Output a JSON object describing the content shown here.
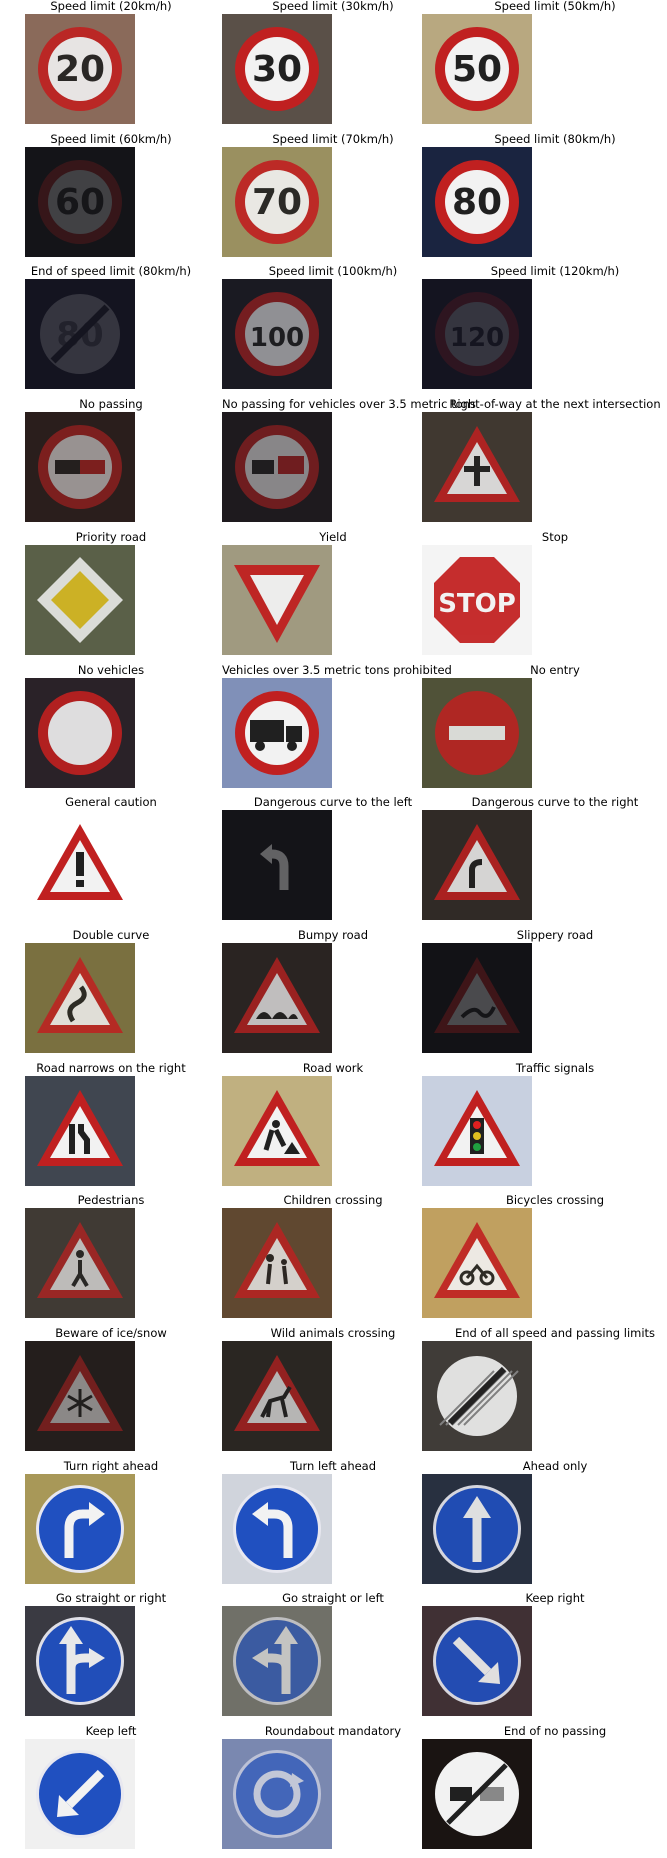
{
  "figure": {
    "signs": [
      {
        "label": "Speed limit (20km/h)",
        "kind": "speed",
        "text": "20",
        "bg": "#8a6a5a",
        "dim": 0.9
      },
      {
        "label": "Speed limit (30km/h)",
        "kind": "speed",
        "text": "30",
        "bg": "#5a5048",
        "dim": 1.0
      },
      {
        "label": "Speed limit (50km/h)",
        "kind": "speed",
        "text": "50",
        "bg": "#b8a880",
        "dim": 1.0
      },
      {
        "label": "Speed limit (60km/h)",
        "kind": "speed",
        "text": "60",
        "bg": "#141418",
        "dim": 0.2
      },
      {
        "label": "Speed limit (70km/h)",
        "kind": "speed",
        "text": "70",
        "bg": "#9a9060",
        "dim": 0.9
      },
      {
        "label": "Speed limit (80km/h)",
        "kind": "speed",
        "text": "80",
        "bg": "#1a2440",
        "dim": 1.0
      },
      {
        "label": "End of speed limit (80km/h)",
        "kind": "end",
        "text": "80",
        "bg": "#141420",
        "dim": 0.15
      },
      {
        "label": "Speed limit (100km/h)",
        "kind": "speed",
        "text": "100",
        "bg": "#1a1a22",
        "dim": 0.55
      },
      {
        "label": "Speed limit (120km/h)",
        "kind": "speed",
        "text": "120",
        "bg": "#141420",
        "dim": 0.15
      },
      {
        "label": "No passing",
        "kind": "nopass",
        "text": "",
        "bg": "#2a1e1c",
        "dim": 0.55
      },
      {
        "label": "No passing for vehicles over 3.5 metric tons",
        "kind": "nopasstruck",
        "text": "",
        "bg": "#1e1a1e",
        "dim": 0.5
      },
      {
        "label": "Right-of-way at the next intersection",
        "kind": "tri_cross",
        "text": "",
        "bg": "#403830",
        "dim": 0.85
      },
      {
        "label": "Priority road",
        "kind": "priority",
        "text": "",
        "bg": "#5a6048",
        "dim": 0.85
      },
      {
        "label": "Yield",
        "kind": "yield",
        "text": "",
        "bg": "#a09a80",
        "dim": 0.95
      },
      {
        "label": "Stop",
        "kind": "stop",
        "text": "STOP",
        "bg": "#f4f4f4",
        "dim": 0.9
      },
      {
        "label": "No vehicles",
        "kind": "novehicles",
        "text": "",
        "bg": "#2a2228",
        "dim": 0.9
      },
      {
        "label": "Vehicles over 3.5 metric tons prohibited",
        "kind": "truck",
        "text": "",
        "bg": "#8090b8",
        "dim": 1.0
      },
      {
        "label": "No entry",
        "kind": "noentry",
        "text": "",
        "bg": "#505238",
        "dim": 0.85
      },
      {
        "label": "General caution",
        "kind": "tri_excl",
        "text": "",
        "bg": "#ffffff",
        "dim": 1.0
      },
      {
        "label": "Dangerous curve to the left",
        "kind": "curve_left",
        "text": "",
        "bg": "#141418",
        "dim": 0.35
      },
      {
        "label": "Dangerous curve to the right",
        "kind": "tri_curve",
        "text": "",
        "bg": "#302a26",
        "dim": 0.85
      },
      {
        "label": "Double curve",
        "kind": "tri_double",
        "text": "",
        "bg": "#7a7040",
        "dim": 0.85
      },
      {
        "label": "Bumpy road",
        "kind": "tri_bump",
        "text": "",
        "bg": "#2a2422",
        "dim": 0.75
      },
      {
        "label": "Slippery road",
        "kind": "tri_slip",
        "text": "",
        "bg": "#121216",
        "dim": 0.25
      },
      {
        "label": "Road narrows on the right",
        "kind": "tri_narrow",
        "text": "",
        "bg": "#404650",
        "dim": 1.0
      },
      {
        "label": "Road work",
        "kind": "tri_work",
        "text": "",
        "bg": "#c0b080",
        "dim": 1.0
      },
      {
        "label": "Traffic signals",
        "kind": "tri_lights",
        "text": "",
        "bg": "#c8d0e0",
        "dim": 1.0
      },
      {
        "label": "Pedestrians",
        "kind": "tri_ped",
        "text": "",
        "bg": "#403a34",
        "dim": 0.7
      },
      {
        "label": "Children crossing",
        "kind": "tri_child",
        "text": "",
        "bg": "#604830",
        "dim": 0.8
      },
      {
        "label": "Bicycles crossing",
        "kind": "tri_bike",
        "text": "",
        "bg": "#c0a060",
        "dim": 0.9
      },
      {
        "label": "Beware of ice/snow",
        "kind": "tri_snow",
        "text": "",
        "bg": "#241e1c",
        "dim": 0.5
      },
      {
        "label": "Wild animals crossing",
        "kind": "tri_deer",
        "text": "",
        "bg": "#2a2622",
        "dim": 0.7
      },
      {
        "label": "End of all speed and passing limits",
        "kind": "endall",
        "text": "",
        "bg": "#403c38",
        "dim": 0.9
      },
      {
        "label": "Turn right ahead",
        "kind": "blue_turn_right",
        "text": "",
        "bg": "#a89858",
        "dim": 1.0
      },
      {
        "label": "Turn left ahead",
        "kind": "blue_turn_left",
        "text": "",
        "bg": "#d0d4dc",
        "dim": 1.0
      },
      {
        "label": "Ahead only",
        "kind": "blue_up",
        "text": "",
        "bg": "#283040",
        "dim": 0.9
      },
      {
        "label": "Go straight or right",
        "kind": "blue_sr",
        "text": "",
        "bg": "#3a3a42",
        "dim": 0.95
      },
      {
        "label": "Go straight or left",
        "kind": "blue_sl",
        "text": "",
        "bg": "#707068",
        "dim": 0.65
      },
      {
        "label": "Keep right",
        "kind": "blue_kr",
        "text": "",
        "bg": "#403034",
        "dim": 0.9
      },
      {
        "label": "Keep left",
        "kind": "blue_kl",
        "text": "",
        "bg": "#f0f0f0",
        "dim": 1.0
      },
      {
        "label": "Roundabout mandatory",
        "kind": "blue_round",
        "text": "",
        "bg": "#7a88b0",
        "dim": 0.6
      },
      {
        "label": "End of no passing",
        "kind": "endnopass",
        "text": "",
        "bg": "#1a1412",
        "dim": 1.0
      }
    ]
  }
}
